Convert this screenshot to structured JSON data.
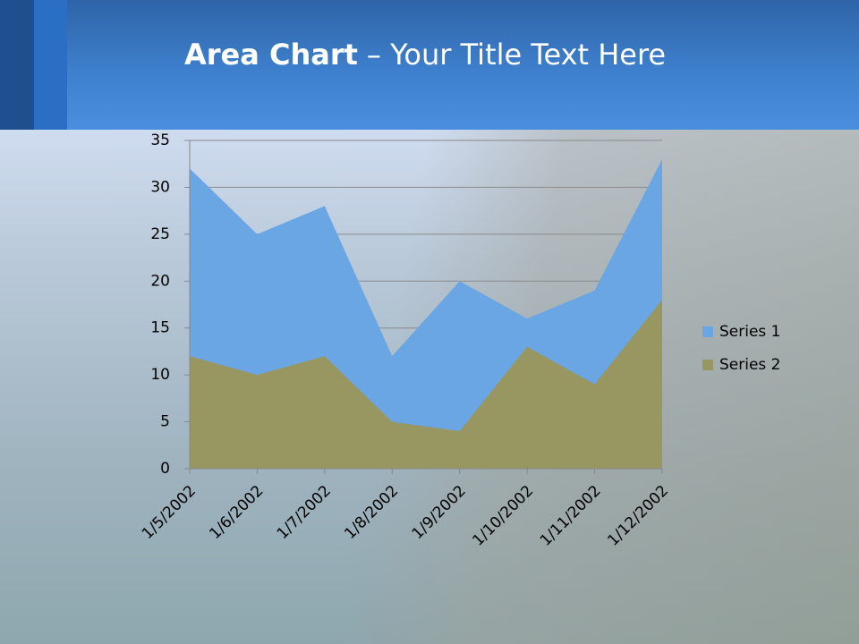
{
  "chart_data": {
    "type": "area",
    "title_bold": "Area Chart",
    "title": "– Your Title Text Here",
    "categories": [
      "1/5/2002",
      "1/6/2002",
      "1/7/2002",
      "1/8/2002",
      "1/9/2002",
      "1/10/2002",
      "1/11/2002",
      "1/12/2002"
    ],
    "series": [
      {
        "name": "Series 1",
        "color": "#6aa5e4",
        "values": [
          32,
          25,
          28,
          12,
          20,
          16,
          19,
          33
        ]
      },
      {
        "name": "Series 2",
        "color": "#989762",
        "values": [
          12,
          10,
          12,
          5,
          4,
          13,
          9,
          18
        ]
      }
    ],
    "ylim": [
      0,
      35
    ],
    "yticks": [
      0,
      5,
      10,
      15,
      20,
      25,
      30,
      35
    ],
    "grid": true,
    "legend": "right"
  }
}
